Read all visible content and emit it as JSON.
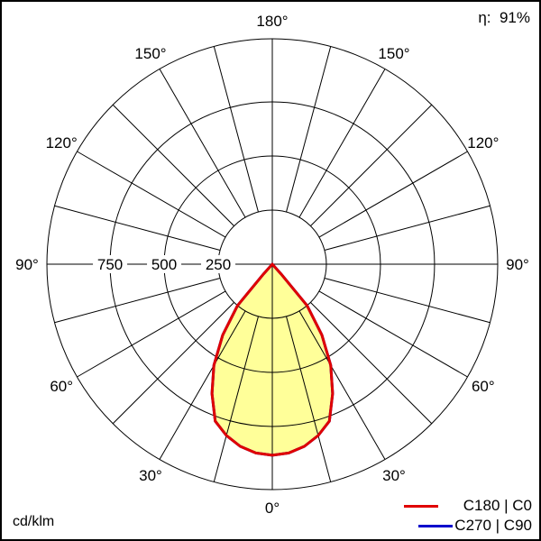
{
  "chart_data": {
    "type": "polar",
    "efficiency_label": "η:",
    "efficiency_value": "91%",
    "unit": "cd/klm",
    "radial_ticks": [
      250,
      500,
      750
    ],
    "radial_tick_labels": [
      "250",
      "500",
      "750"
    ],
    "radial_max": 1042,
    "angle_labels": [
      {
        "angle": 0,
        "label": "0°"
      },
      {
        "angle": 30,
        "label": "30°"
      },
      {
        "angle": 60,
        "label": "60°"
      },
      {
        "angle": 90,
        "label": "90°"
      },
      {
        "angle": 120,
        "label": "120°"
      },
      {
        "angle": 150,
        "label": "150°"
      },
      {
        "angle": 180,
        "label": "180°"
      }
    ],
    "angle_grid_step": 15,
    "grid": true,
    "legend_placement": "bottom-right",
    "fill_color": "#ffff99",
    "angles": [
      0,
      5,
      10,
      15,
      20,
      25,
      30,
      35,
      40,
      42,
      45,
      50,
      60,
      70,
      80,
      90
    ],
    "series": [
      {
        "name": "C180 | C0",
        "color": "#e00000",
        "values": [
          883,
          876,
          855,
          820,
          772,
          660,
          540,
          400,
          250,
          60,
          0,
          0,
          0,
          0,
          0,
          0
        ]
      },
      {
        "name": "C270 | C90",
        "color": "#0000cc",
        "values": [
          883,
          876,
          855,
          820,
          772,
          660,
          540,
          400,
          250,
          60,
          0,
          0,
          0,
          0,
          0,
          0
        ]
      }
    ]
  }
}
